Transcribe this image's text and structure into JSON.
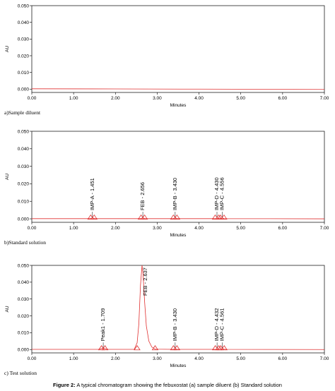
{
  "chart_data": [
    {
      "type": "line",
      "xlabel": "Minutes",
      "ylabel": "AU",
      "xlim": [
        0,
        7
      ],
      "ylim": [
        -0.002,
        0.05
      ],
      "x_ticks": [
        "0.00",
        "1.00",
        "2.00",
        "3.00",
        "4.00",
        "5.00",
        "6.00",
        "7.00"
      ],
      "y_ticks": [
        "0.000",
        "0.010",
        "0.020",
        "0.030",
        "0.040",
        "0.050"
      ],
      "line_color": "#e03030",
      "series": [
        {
          "points": [
            [
              0,
              0.0002
            ],
            [
              2,
              0.0001
            ],
            [
              4,
              0.0
            ],
            [
              7,
              -0.0002
            ]
          ]
        }
      ],
      "peaks": [],
      "caption": "a)Sample diluent"
    },
    {
      "type": "line",
      "xlabel": "Minutes",
      "ylabel": "AU",
      "xlim": [
        0,
        7
      ],
      "ylim": [
        -0.002,
        0.05
      ],
      "x_ticks": [
        "0.00",
        "1.00",
        "2.00",
        "3.00",
        "4.00",
        "5.00",
        "6.00",
        "7.00"
      ],
      "y_ticks": [
        "0.000",
        "0.010",
        "0.020",
        "0.030",
        "0.040",
        "0.050"
      ],
      "line_color": "#e03030",
      "series": [
        {
          "points": [
            [
              0,
              0.0001
            ],
            [
              1.4,
              0.0001
            ],
            [
              1.451,
              0.0006
            ],
            [
              1.5,
              0.0001
            ],
            [
              2.6,
              0.0001
            ],
            [
              2.656,
              0.0006
            ],
            [
              2.7,
              0.0001
            ],
            [
              3.38,
              0.0001
            ],
            [
              3.43,
              0.0006
            ],
            [
              3.48,
              0.0001
            ],
            [
              4.4,
              0.0001
            ],
            [
              4.43,
              0.0005
            ],
            [
              4.49,
              0.0001
            ],
            [
              4.556,
              0.0005
            ],
            [
              4.6,
              0.0001
            ],
            [
              7,
              0.0
            ]
          ]
        }
      ],
      "peaks": [
        {
          "label": "IMP-A - 1.451",
          "x": 1.451
        },
        {
          "label": "FEB - 2.656",
          "x": 2.656
        },
        {
          "label": "IMP-B - 3.430",
          "x": 3.43
        },
        {
          "label": "IMP-D - 4.430",
          "x": 4.43
        },
        {
          "label": "IMP-C - 4.556",
          "x": 4.556
        }
      ],
      "caption": "b)Standard solution"
    },
    {
      "type": "line",
      "xlabel": "Minutes",
      "ylabel": "AU",
      "xlim": [
        0,
        7
      ],
      "ylim": [
        -0.002,
        0.05
      ],
      "x_ticks": [
        "0.00",
        "1.00",
        "2.00",
        "3.00",
        "4.00",
        "5.00",
        "6.00",
        "7.00"
      ],
      "y_ticks": [
        "0.000",
        "0.010",
        "0.020",
        "0.030",
        "0.040",
        "0.050"
      ],
      "line_color": "#e03030",
      "series": [
        {
          "points": [
            [
              0,
              0.0001
            ],
            [
              1.6,
              0.0001
            ],
            [
              1.709,
              0.0008
            ],
            [
              1.8,
              0.0001
            ],
            [
              2.45,
              0.0001
            ],
            [
              2.52,
              0.004
            ],
            [
              2.56,
              0.015
            ],
            [
              2.6,
              0.038
            ],
            [
              2.637,
              0.05
            ],
            [
              2.66,
              0.045
            ],
            [
              2.7,
              0.028
            ],
            [
              2.74,
              0.014
            ],
            [
              2.8,
              0.005
            ],
            [
              2.87,
              0.0015
            ],
            [
              2.95,
              0.0002
            ],
            [
              3.38,
              0.0001
            ],
            [
              3.43,
              0.0005
            ],
            [
              3.48,
              0.0001
            ],
            [
              4.4,
              0.0001
            ],
            [
              4.432,
              0.0005
            ],
            [
              4.5,
              0.0001
            ],
            [
              4.561,
              0.0005
            ],
            [
              4.62,
              0.0001
            ],
            [
              7,
              0.0
            ]
          ]
        }
      ],
      "peaks": [
        {
          "label": "Peak1 - 1.709",
          "x": 1.709
        },
        {
          "label": "FEB - 2.637",
          "x": 2.637,
          "top": true
        },
        {
          "label": "IMP-B - 3.430",
          "x": 3.43
        },
        {
          "label": "IMP-D - 4.432",
          "x": 4.432
        },
        {
          "label": "IMP-C - 4.561",
          "x": 4.561
        }
      ],
      "baseline_marks": [
        1.709,
        2.52,
        2.95,
        3.43,
        4.432,
        4.561
      ],
      "caption": "c) Test solution"
    }
  ],
  "figure_caption": {
    "prefix": "Figure 2:",
    "text": " A typical chromatogram showing the febuxostat (a) sample diluent (b) Standard solution"
  }
}
